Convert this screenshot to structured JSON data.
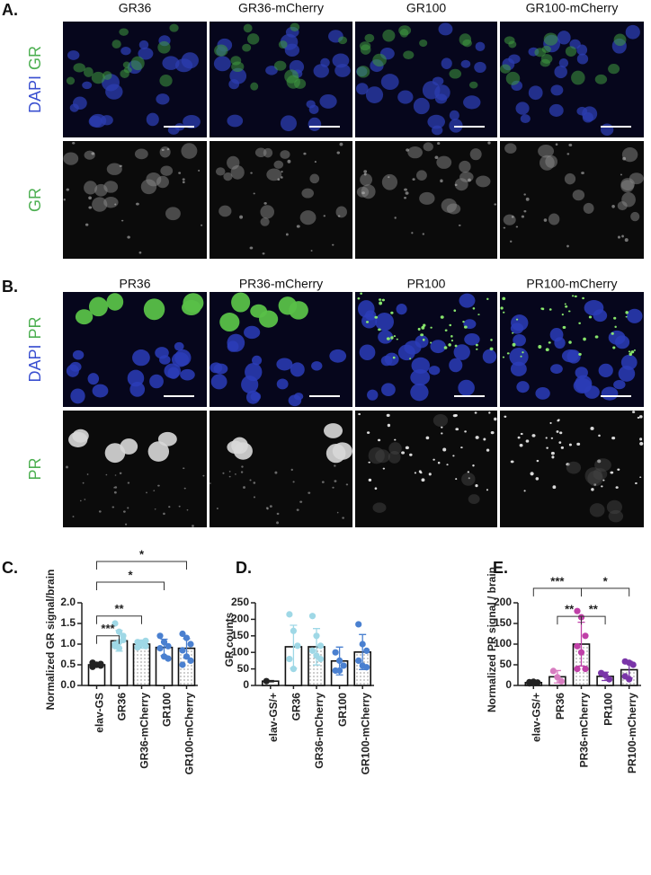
{
  "image_panels": [
    {
      "label": "A.",
      "columns": [
        "GR36",
        "GR36-mCherry",
        "GR100",
        "GR100-mCherry"
      ],
      "row_labels": [
        [
          "DAPI",
          "GR"
        ],
        [
          "GR"
        ]
      ]
    },
    {
      "label": "B.",
      "columns": [
        "PR36",
        "PR36-mCherry",
        "PR100",
        "PR100-mCherry"
      ],
      "row_labels": [
        [
          "DAPI",
          "PR"
        ],
        [
          "PR"
        ]
      ]
    }
  ],
  "chart_data": [
    {
      "type": "bar",
      "panel": "C.",
      "y_label": "Normalized GR signal/brain",
      "categories": [
        "elav-GS",
        "GR36",
        "GR36-mCherry",
        "GR100",
        "GR100-mCherry"
      ],
      "values": [
        0.5,
        1.08,
        1.0,
        0.92,
        0.9
      ],
      "errors": [
        0.05,
        0.25,
        0.1,
        0.2,
        0.23
      ],
      "points": [
        [
          0.45,
          0.5,
          0.52,
          0.55,
          0.5,
          0.48
        ],
        [
          1.5,
          1.3,
          1.1,
          1.0,
          0.9,
          1.2,
          0.95,
          1.05
        ],
        [
          1.05,
          1.0,
          0.95,
          0.92,
          1.02,
          1.08
        ],
        [
          1.2,
          1.05,
          0.95,
          0.9,
          0.7,
          0.65
        ],
        [
          1.25,
          1.15,
          1.0,
          0.85,
          0.7,
          0.6,
          0.5
        ]
      ],
      "point_colors": [
        "#222222",
        "#9fd8e6",
        "#9fd8e6",
        "#4a80d0",
        "#4a80d0"
      ],
      "dotted": [
        false,
        false,
        true,
        false,
        true
      ],
      "ylim": [
        0,
        2.0
      ],
      "yticks": [
        {
          "value": 0,
          "label": "0.0"
        },
        0.5,
        {
          "value": 1,
          "label": "1.0"
        },
        1.5,
        {
          "value": 2,
          "label": "2.0"
        }
      ],
      "annotations": [
        {
          "label": "***",
          "from": 0,
          "to": 1,
          "y": 1.2
        },
        {
          "label": "**",
          "from": 0,
          "to": 2,
          "y": 1.68
        },
        {
          "label": "*",
          "from": 0,
          "to": 3,
          "y": 2.5
        },
        {
          "label": "*",
          "from": 0,
          "to": 4,
          "y": 3.0
        }
      ]
    },
    {
      "type": "bar",
      "panel": "D.",
      "y_label": "GR counts",
      "categories": [
        "elav-GS/+",
        "GR36",
        "GR36-mCherry",
        "GR100",
        "GR100-mCherry"
      ],
      "values": [
        13,
        117,
        117,
        74,
        101
      ],
      "errors": [
        2,
        65,
        55,
        42,
        53
      ],
      "points": [
        [
          13
        ],
        [
          215,
          165,
          120,
          80,
          50
        ],
        [
          210,
          150,
          120,
          105,
          90,
          80
        ],
        [
          100,
          75,
          60,
          45,
          45
        ],
        [
          185,
          125,
          105,
          75,
          60,
          55
        ]
      ],
      "point_colors": [
        "#222222",
        "#9fd8e6",
        "#9fd8e6",
        "#4a80d0",
        "#4a80d0"
      ],
      "dotted": [
        false,
        false,
        true,
        false,
        true
      ],
      "ylim": [
        0,
        250
      ],
      "yticks": [
        0,
        50,
        100,
        150,
        200,
        250
      ],
      "annotations": []
    },
    {
      "type": "bar",
      "panel": "E.",
      "y_label": "Normalized PR signal / brain",
      "categories": [
        "elav-GS/+",
        "PR36",
        "PR36-mCherry",
        "PR100",
        "PR100-mCherry"
      ],
      "values": [
        7,
        21,
        100,
        22,
        38
      ],
      "errors": [
        2,
        15,
        53,
        10,
        20
      ],
      "points": [
        [
          5,
          6,
          7,
          8,
          9
        ],
        [
          35,
          20,
          10
        ],
        [
          180,
          165,
          120,
          95,
          80,
          40,
          40
        ],
        [
          30,
          25,
          15
        ],
        [
          58,
          55,
          50,
          22,
          15
        ]
      ],
      "point_colors": [
        "#222222",
        "#d77cc0",
        "#c040a8",
        "#7a35a8",
        "#7a35a8"
      ],
      "dotted": [
        false,
        false,
        true,
        false,
        true
      ],
      "ylim": [
        0,
        200
      ],
      "yticks": [
        0,
        50,
        100,
        150,
        200
      ],
      "annotations": [
        {
          "label": "***",
          "from": 0,
          "to": 2,
          "y": 235
        },
        {
          "label": "*",
          "from": 2,
          "to": 4,
          "y": 235
        },
        {
          "label": "**",
          "from": 1,
          "to": 2,
          "y": 167
        },
        {
          "label": "**",
          "from": 2,
          "to": 3,
          "y": 167
        }
      ]
    }
  ]
}
